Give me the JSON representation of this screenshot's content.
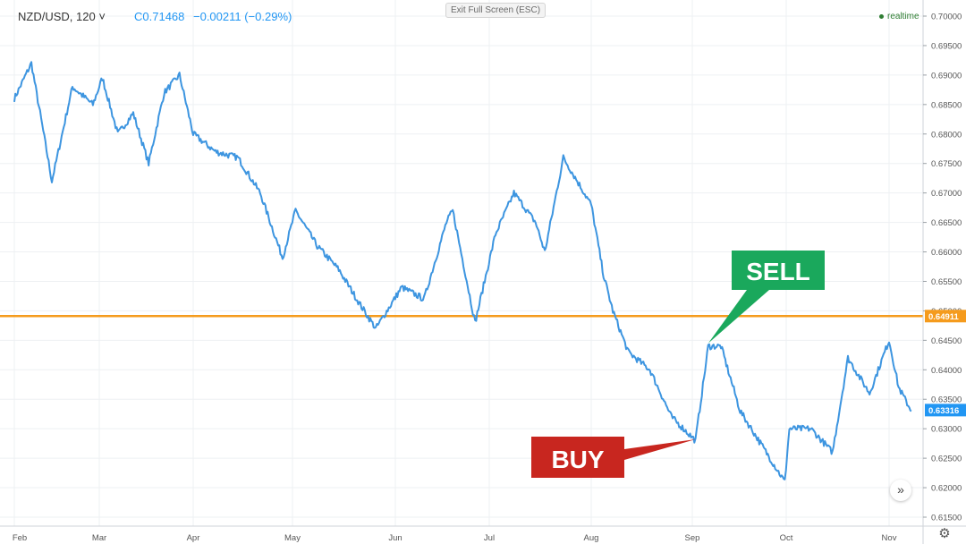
{
  "header": {
    "symbol": "NZD/USD, 120",
    "symbol_chevron": "˅",
    "close": "C0.71468",
    "change": "−0.00211 (−0.29%)",
    "exit_fullscreen": "Exit Full Screen (ESC)",
    "status": "realtime"
  },
  "icons": {
    "scroll_right": "double-chevron-right-icon",
    "settings": "gear-icon"
  },
  "colors": {
    "price_line": "#3d95e0",
    "level_line": "#f59b1d",
    "sell": "#1aa85c",
    "buy": "#c8261f",
    "price_tag": "#2196f3"
  },
  "chart_data": {
    "type": "line",
    "x": [
      "Feb 1",
      "Feb 6",
      "Feb 12",
      "Feb 18",
      "Feb 24",
      "Mar 2",
      "Mar 7",
      "Mar 12",
      "Mar 17",
      "Mar 22",
      "Mar 27",
      "Apr 1",
      "Apr 8",
      "Apr 15",
      "Apr 22",
      "Apr 29",
      "May 2",
      "May 9",
      "May 16",
      "May 23",
      "May 28",
      "Jun 3",
      "Jun 10",
      "Jun 17",
      "Jun 19",
      "Jun 26",
      "Jul 3",
      "Jul 9",
      "Jul 16",
      "Jul 19",
      "Jul 25",
      "Aug 1",
      "Aug 5",
      "Aug 8",
      "Aug 13",
      "Aug 20",
      "Aug 27",
      "Sep 2",
      "Sep 6",
      "Sep 10",
      "Sep 16",
      "Sep 23",
      "Sep 30",
      "Oct 2",
      "Oct 9",
      "Oct 16",
      "Oct 21",
      "Oct 28",
      "Nov 1",
      "Nov 4",
      "Nov 8"
    ],
    "values": [
      0.686,
      0.692,
      0.672,
      0.688,
      0.685,
      0.6895,
      0.68,
      0.6835,
      0.675,
      0.687,
      0.69,
      0.68,
      0.677,
      0.676,
      0.67,
      0.659,
      0.667,
      0.661,
      0.657,
      0.651,
      0.647,
      0.654,
      0.652,
      0.665,
      0.667,
      0.648,
      0.663,
      0.67,
      0.665,
      0.66,
      0.676,
      0.668,
      0.656,
      0.65,
      0.643,
      0.64,
      0.632,
      0.628,
      0.644,
      0.644,
      0.633,
      0.627,
      0.621,
      0.63,
      0.63,
      0.626,
      0.642,
      0.636,
      0.645,
      0.637,
      0.633
    ],
    "ylim": [
      0.6125,
      0.7
    ],
    "y_ticks": [
      "0.70000",
      "0.69500",
      "0.69000",
      "0.68500",
      "0.68000",
      "0.67500",
      "0.67000",
      "0.66500",
      "0.66000",
      "0.65500",
      "0.65000",
      "0.64500",
      "0.64000",
      "0.63500",
      "0.63000",
      "0.62500",
      "0.62000",
      "0.61500"
    ],
    "x_ticks": [
      "Feb",
      "Mar",
      "Apr",
      "May",
      "Jun",
      "Jul",
      "Aug",
      "Sep",
      "Oct",
      "Nov"
    ],
    "level_line": {
      "value": 0.64911,
      "label": "0.64911"
    },
    "last_price": {
      "value": 0.63316,
      "label": "0.63316"
    },
    "annotations": [
      {
        "text": "SELL",
        "target_date": "Sep 6",
        "target_value": 0.6445
      },
      {
        "text": "BUY",
        "target_date": "Sep 2",
        "target_value": 0.6282
      }
    ],
    "grid": true
  }
}
